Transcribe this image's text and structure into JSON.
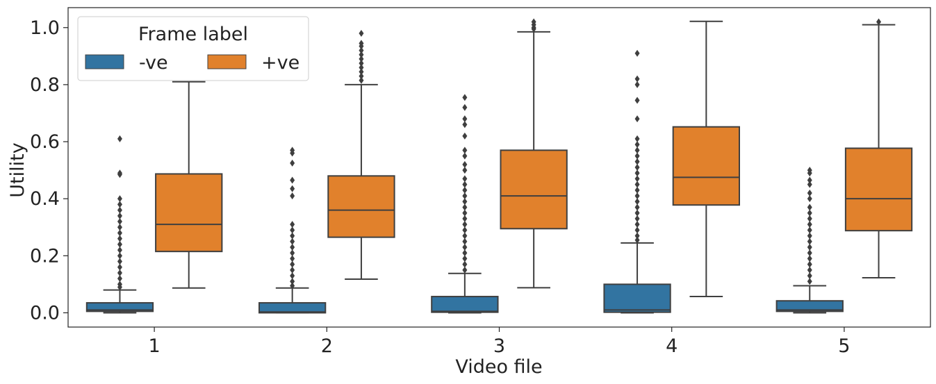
{
  "chart_data": {
    "type": "box",
    "xlabel": "Video file",
    "ylabel": "Utility",
    "categories": [
      "1",
      "2",
      "3",
      "4",
      "5"
    ],
    "ylim": [
      -0.05,
      1.07
    ],
    "yticks": [
      "0.0",
      "0.2",
      "0.4",
      "0.6",
      "0.8",
      "1.0"
    ],
    "legend": {
      "title": "Frame label",
      "position": "upper-left"
    },
    "series": [
      {
        "name": "-ve",
        "color": "#3274a1",
        "boxes": [
          {
            "q1": 0.005,
            "median": 0.01,
            "q3": 0.035,
            "whisker_low": 0.0,
            "whisker_high": 0.08,
            "outliers": [
              0.61,
              0.49,
              0.485,
              0.4,
              0.38,
              0.36,
              0.34,
              0.32,
              0.3,
              0.28,
              0.26,
              0.24,
              0.22,
              0.2,
              0.18,
              0.16,
              0.14,
              0.12,
              0.1,
              0.09
            ]
          },
          {
            "q1": 0.0,
            "median": 0.003,
            "q3": 0.035,
            "whisker_low": 0.0,
            "whisker_high": 0.087,
            "outliers": [
              0.57,
              0.56,
              0.525,
              0.465,
              0.435,
              0.41,
              0.31,
              0.29,
              0.27,
              0.25,
              0.23,
              0.21,
              0.19,
              0.17,
              0.15,
              0.13,
              0.11,
              0.095
            ]
          },
          {
            "q1": 0.002,
            "median": 0.005,
            "q3": 0.057,
            "whisker_low": 0.0,
            "whisker_high": 0.138,
            "outliers": [
              0.755,
              0.72,
              0.68,
              0.66,
              0.62,
              0.57,
              0.55,
              0.52,
              0.5,
              0.47,
              0.45,
              0.43,
              0.41,
              0.39,
              0.37,
              0.35,
              0.33,
              0.31,
              0.29,
              0.27,
              0.25,
              0.23,
              0.21,
              0.19,
              0.17,
              0.15
            ]
          },
          {
            "q1": 0.002,
            "median": 0.01,
            "q3": 0.1,
            "whisker_low": 0.0,
            "whisker_high": 0.245,
            "outliers": [
              0.91,
              0.82,
              0.8,
              0.745,
              0.68,
              0.61,
              0.59,
              0.57,
              0.55,
              0.53,
              0.51,
              0.49,
              0.47,
              0.45,
              0.43,
              0.41,
              0.39,
              0.37,
              0.35,
              0.33,
              0.31,
              0.29,
              0.27,
              0.255
            ]
          },
          {
            "q1": 0.005,
            "median": 0.01,
            "q3": 0.042,
            "whisker_low": 0.0,
            "whisker_high": 0.095,
            "outliers": [
              0.5,
              0.49,
              0.465,
              0.45,
              0.42,
              0.4,
              0.37,
              0.35,
              0.33,
              0.31,
              0.29,
              0.27,
              0.25,
              0.23,
              0.21,
              0.19,
              0.17,
              0.15,
              0.13,
              0.11
            ]
          }
        ]
      },
      {
        "name": "+ve",
        "color": "#e1812c",
        "boxes": [
          {
            "q1": 0.215,
            "median": 0.31,
            "q3": 0.487,
            "whisker_low": 0.087,
            "whisker_high": 0.81,
            "outliers": []
          },
          {
            "q1": 0.265,
            "median": 0.36,
            "q3": 0.48,
            "whisker_low": 0.118,
            "whisker_high": 0.8,
            "outliers": [
              0.98,
              0.945,
              0.935,
              0.92,
              0.905,
              0.89,
              0.875,
              0.86,
              0.845,
              0.83,
              0.815
            ]
          },
          {
            "q1": 0.295,
            "median": 0.41,
            "q3": 0.57,
            "whisker_low": 0.088,
            "whisker_high": 0.985,
            "outliers": [
              1.02,
              1.01,
              1.0,
              0.995
            ]
          },
          {
            "q1": 0.378,
            "median": 0.475,
            "q3": 0.652,
            "whisker_low": 0.057,
            "whisker_high": 1.022,
            "outliers": []
          },
          {
            "q1": 0.288,
            "median": 0.4,
            "q3": 0.577,
            "whisker_low": 0.123,
            "whisker_high": 1.01,
            "outliers": [
              1.02
            ]
          }
        ]
      }
    ],
    "grid": false
  }
}
